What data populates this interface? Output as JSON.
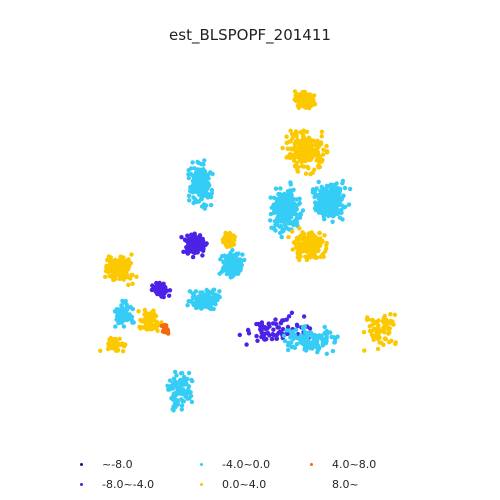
{
  "title": "est_BLSPOPF_201411",
  "legend": [
    {
      "label": "~-8.0",
      "color": "#1a0f8f"
    },
    {
      "label": "-8.0~-4.0",
      "color": "#4b22e6"
    },
    {
      "label": "-4.0~0.0",
      "color": "#35cdf5"
    },
    {
      "label": "0.0~4.0",
      "color": "#fcc800"
    },
    {
      "label": "4.0~8.0",
      "color": "#f26a10"
    },
    {
      "label": "8.0~",
      "color": "#ffffff"
    }
  ],
  "regions": [
    {
      "class": 3,
      "points": 220
    },
    {
      "class": 3,
      "points": 190
    },
    {
      "class": 2,
      "points": 260
    },
    {
      "class": 2,
      "points": 240
    },
    {
      "class": 3,
      "points": 140
    },
    {
      "class": 2,
      "points": 210
    },
    {
      "class": 1,
      "points": 150
    },
    {
      "class": 2,
      "points": 200
    },
    {
      "class": 2,
      "points": 150
    },
    {
      "class": 3,
      "points": 130
    },
    {
      "class": 1,
      "points": 60
    },
    {
      "class": 3,
      "points": 70
    },
    {
      "class": 2,
      "points": 60
    },
    {
      "class": 3,
      "points": 40
    },
    {
      "class": 4,
      "points": 35
    },
    {
      "class": 2,
      "points": 90
    },
    {
      "class": 3,
      "points": 60
    },
    {
      "class": 1,
      "points": 80
    },
    {
      "class": 2,
      "points": 120
    },
    {
      "class": 3,
      "points": 70
    }
  ]
}
